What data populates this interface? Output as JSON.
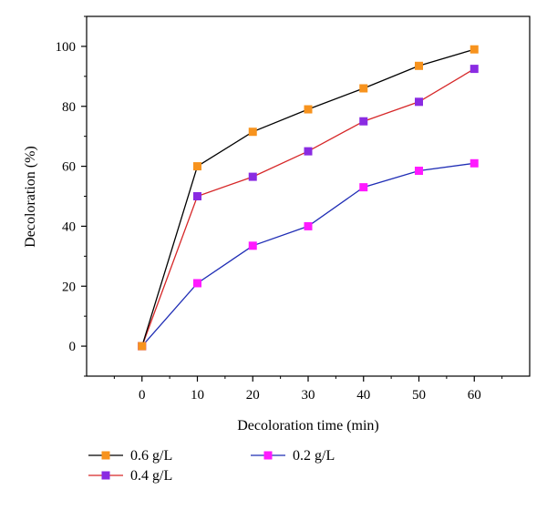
{
  "chart_data": {
    "type": "line",
    "title": "",
    "xlabel": "Decoloration time (min)",
    "ylabel": "Decoloration (%)",
    "x": [
      0,
      10,
      20,
      30,
      40,
      50,
      60
    ],
    "xlim": [
      -10,
      70
    ],
    "ylim": [
      -10,
      110
    ],
    "xticks": [
      "0",
      "10",
      "20",
      "30",
      "40",
      "50",
      "60"
    ],
    "yticks": [
      "0",
      "20",
      "40",
      "60",
      "80",
      "100"
    ],
    "grid": false,
    "legend_position": "bottom",
    "series": [
      {
        "name": "0.6 g/L",
        "values": [
          0,
          60,
          71.5,
          79,
          86,
          93.5,
          99
        ],
        "line_color": "#000000",
        "marker_color": "#f7931e"
      },
      {
        "name": "0.4 g/L",
        "values": [
          0,
          50,
          56.5,
          65,
          75,
          81.5,
          92.5
        ],
        "line_color": "#d62728",
        "marker_color": "#8a2be2"
      },
      {
        "name": "0.2 g/L",
        "values": [
          0,
          21,
          33.5,
          40,
          53,
          58.5,
          61
        ],
        "line_color": "#1f2db5",
        "marker_color": "#ff1aff"
      }
    ]
  }
}
